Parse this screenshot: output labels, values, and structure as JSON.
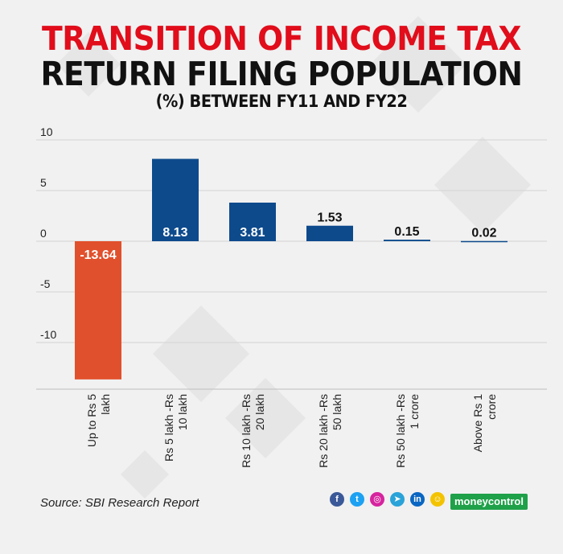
{
  "header": {
    "line1": "TRANSITION OF INCOME TAX",
    "line2": "RETURN FILING POPULATION",
    "line3": "(%) BETWEEN FY11 AND FY22"
  },
  "chart_data": {
    "type": "bar",
    "title": "TRANSITION OF INCOME TAX RETURN FILING POPULATION (%) BETWEEN FY11 AND FY22",
    "xlabel": "",
    "ylabel": "",
    "ylim": [
      -14,
      10
    ],
    "yticks": [
      10,
      5,
      0,
      -5,
      -10
    ],
    "grid": true,
    "categories": [
      "Up to Rs 5 lakh",
      "Rs 5 lakh -Rs 10 lakh",
      "Rs 10 lakh -Rs 20 lakh",
      "Rs 20 lakh -Rs 50 lakh",
      "Rs 50 lakh -Rs 1 crore",
      "Above Rs 1 crore"
    ],
    "category_lines": [
      [
        "Up to Rs 5",
        "lakh"
      ],
      [
        "Rs 5 lakh -Rs",
        "10 lakh"
      ],
      [
        "Rs 10 lakh -Rs",
        "20 lakh"
      ],
      [
        "Rs 20 lakh -Rs",
        "50 lakh"
      ],
      [
        "Rs 50 lakh -Rs",
        "1 crore"
      ],
      [
        "Above Rs 1",
        "crore"
      ]
    ],
    "values": [
      -13.64,
      8.13,
      3.81,
      1.53,
      0.15,
      0.02
    ],
    "value_labels": [
      "-13.64",
      "8.13",
      "3.81",
      "1.53",
      "0.15",
      "0.02"
    ],
    "colors": {
      "positive": "#0d4a8c",
      "negative": "#e1502c",
      "label_inside": "#ffffff",
      "label_outside": "#111111"
    }
  },
  "footer": {
    "source": "Source: SBI Research Report",
    "brand": "moneycontrol",
    "social_icons": [
      {
        "name": "facebook-icon",
        "glyph": "f",
        "color": "#3b5998"
      },
      {
        "name": "twitter-icon",
        "glyph": "t",
        "color": "#1da1f2"
      },
      {
        "name": "instagram-icon",
        "glyph": "◎",
        "color": "#d6249f"
      },
      {
        "name": "telegram-icon",
        "glyph": "➤",
        "color": "#2aa3d8"
      },
      {
        "name": "linkedin-icon",
        "glyph": "in",
        "color": "#0a66c2"
      },
      {
        "name": "snapchat-icon",
        "glyph": "☺",
        "color": "#f3c300"
      }
    ]
  }
}
